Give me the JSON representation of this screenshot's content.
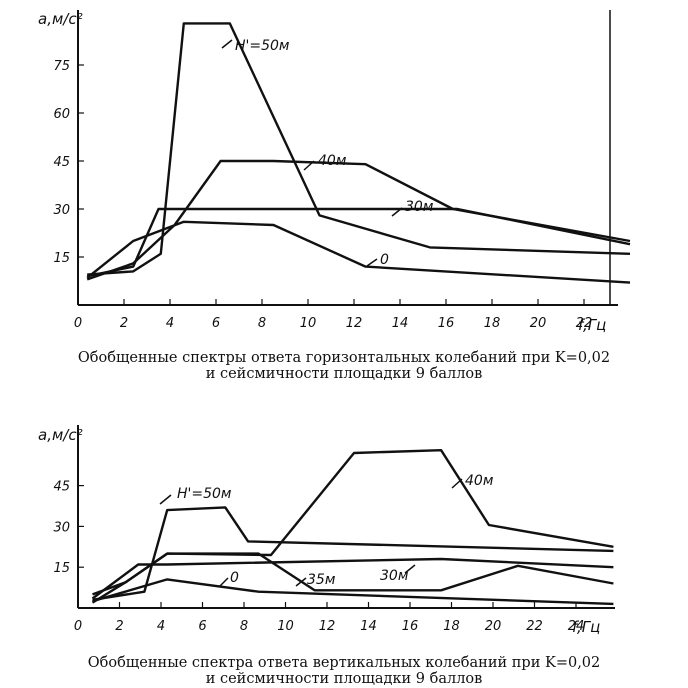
{
  "chart_data": [
    {
      "type": "line",
      "ylabel": "a,м/с²",
      "xlabel": "f,Гц",
      "xlim": [
        0,
        24
      ],
      "ylim": [
        0,
        93
      ],
      "x_ticks": [
        0,
        2,
        4,
        6,
        8,
        10,
        12,
        14,
        16,
        18,
        20,
        22
      ],
      "y_ticks": [
        15,
        30,
        45,
        60,
        75
      ],
      "grid": false,
      "caption": [
        "Обобщенные спектры ответа горизонтальных колебаний при K=0,02",
        "и сейсмичности площадки 9 баллов"
      ],
      "series": [
        {
          "name": "H'=50м",
          "x": [
            0.4,
            2.4,
            3.6,
            4.6,
            6.6,
            10.5,
            15.3,
            24
          ],
          "y": [
            9.5,
            10.5,
            16,
            88,
            88,
            28,
            18,
            16
          ]
        },
        {
          "name": "40м",
          "x": [
            0.4,
            2.4,
            4.2,
            6.2,
            8.5,
            12.5,
            16.3,
            24
          ],
          "y": [
            8,
            13,
            25,
            45,
            45,
            44,
            30,
            20
          ]
        },
        {
          "name": "30м",
          "x": [
            0.4,
            2.4,
            3.5,
            4.6,
            16.5,
            24
          ],
          "y": [
            9,
            12,
            30,
            30,
            30,
            19
          ]
        },
        {
          "name": "0",
          "x": [
            0.4,
            2.4,
            4.6,
            8.5,
            12.5,
            24
          ],
          "y": [
            8.5,
            20,
            26,
            25,
            12,
            7
          ]
        }
      ]
    },
    {
      "type": "line",
      "ylabel": "a,м/с²",
      "xlabel": "f,Гц",
      "xlim": [
        0,
        26
      ],
      "ylim": [
        0,
        62
      ],
      "x_ticks": [
        0,
        2,
        4,
        6,
        8,
        10,
        12,
        14,
        16,
        18,
        20,
        22,
        24
      ],
      "y_ticks": [
        15,
        30,
        45
      ],
      "grid": false,
      "caption": [
        "Обобщенные спектра ответа вертикальных колебаний при K=0,02",
        "и сейсмичности площадки 9 баллов"
      ],
      "series": [
        {
          "name": "H'=50м",
          "x": [
            0.7,
            3.2,
            4.3,
            7.1,
            8.2,
            25.8
          ],
          "y": [
            3,
            6,
            36,
            37,
            24.5,
            21
          ]
        },
        {
          "name": "40м",
          "x": [
            0.7,
            2.3,
            4.3,
            9.3,
            13.3,
            17.5,
            19.8,
            25.8
          ],
          "y": [
            5,
            9.5,
            20,
            19.5,
            57,
            58,
            30.5,
            22.5
          ]
        },
        {
          "name": "30м",
          "x": [
            0.7,
            2.9,
            4.3,
            17.5,
            25.8
          ],
          "y": [
            3.5,
            16,
            16,
            18,
            15
          ]
        },
        {
          "name": "35м",
          "x": [
            0.7,
            2.3,
            4.3,
            8.7,
            11.4,
            17.5,
            21.2,
            25.8
          ],
          "y": [
            2,
            9.5,
            20,
            20,
            6.5,
            6.5,
            15.5,
            9
          ]
        },
        {
          "name": "0",
          "x": [
            0.7,
            4.3,
            8.7,
            25.8
          ],
          "y": [
            2.5,
            10.5,
            6,
            1.5
          ]
        }
      ]
    }
  ],
  "labels": {
    "top": {
      "h50": "H'=50м",
      "h40": "40м",
      "h30": "30м",
      "h0": "0"
    },
    "bottom": {
      "h50": "H'=50м",
      "h40": "40м",
      "h30": "30м",
      "h35": "35м",
      "h0": "0"
    }
  }
}
